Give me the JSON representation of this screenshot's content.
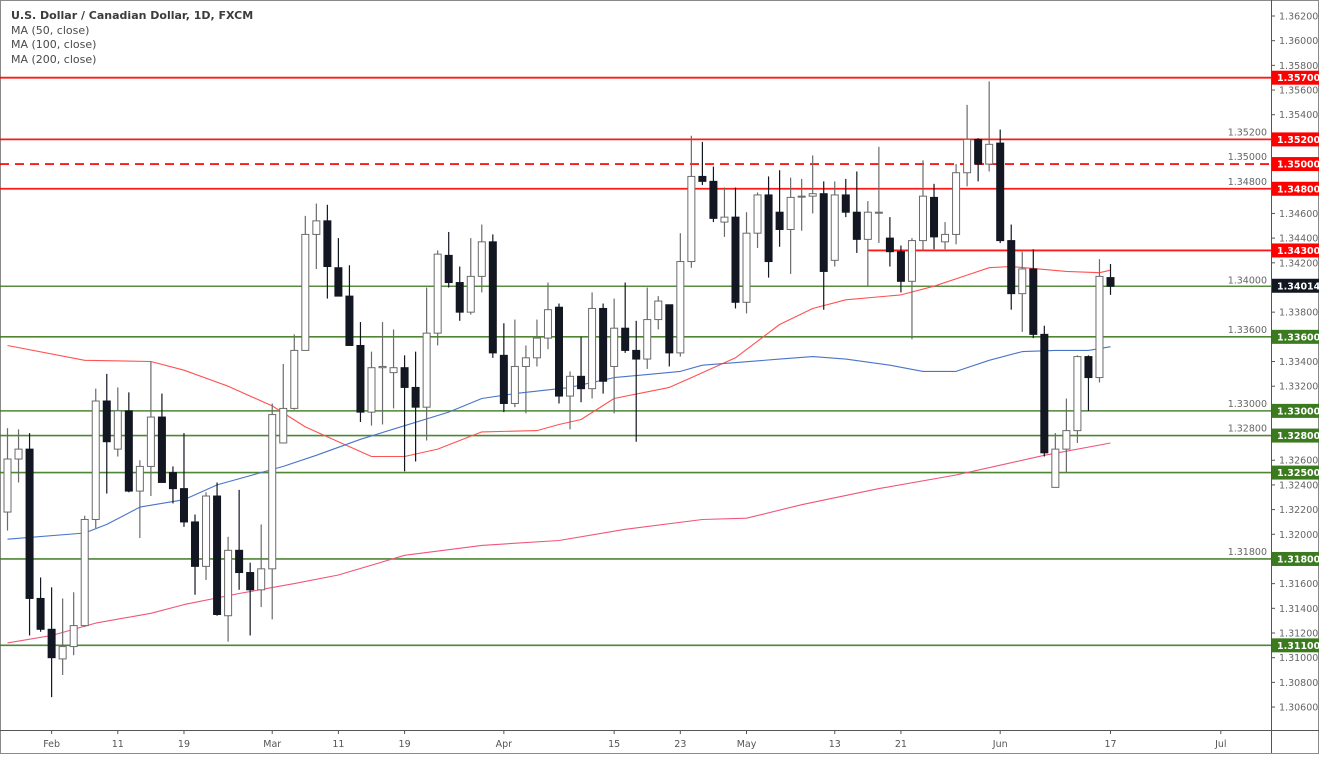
{
  "legend": {
    "title": "U.S. Dollar / Canadian Dollar, 1D, FXCM",
    "ma50": "MA (50, close)",
    "ma100": "MA (100, close)",
    "ma200": "MA (200, close)"
  },
  "chart_data": {
    "type": "candlestick",
    "title": "U.S. Dollar / Canadian Dollar, 1D, FXCM",
    "ylim": [
      1.3048,
      1.3633
    ],
    "y_ticks": [
      "1.36200",
      "1.36000",
      "1.35800",
      "1.35600",
      "1.35400",
      "1.35200",
      "1.35000",
      "1.34800",
      "1.34600",
      "1.34400",
      "1.34200",
      "1.34000",
      "1.33800",
      "1.33600",
      "1.33400",
      "1.33200",
      "1.33000",
      "1.32800",
      "1.32600",
      "1.32400",
      "1.32200",
      "1.32000",
      "1.31800",
      "1.31600",
      "1.31400",
      "1.31200",
      "1.31000",
      "1.30800",
      "1.30600"
    ],
    "x_ticks": [
      {
        "i": 4,
        "label": "Feb"
      },
      {
        "i": 10,
        "label": "11"
      },
      {
        "i": 16,
        "label": "19"
      },
      {
        "i": 24,
        "label": "Mar"
      },
      {
        "i": 30,
        "label": "11"
      },
      {
        "i": 36,
        "label": "19"
      },
      {
        "i": 45,
        "label": "Apr"
      },
      {
        "i": 55,
        "label": "15"
      },
      {
        "i": 61,
        "label": "23"
      },
      {
        "i": 67,
        "label": "May"
      },
      {
        "i": 75,
        "label": "13"
      },
      {
        "i": 81,
        "label": "21"
      },
      {
        "i": 90,
        "label": "Jun"
      },
      {
        "i": 100,
        "label": "17"
      },
      {
        "i": 110,
        "label": "Jul"
      }
    ],
    "candles_ohlc": [
      [
        1.3218,
        1.3286,
        1.3203,
        1.3261
      ],
      [
        1.3261,
        1.3285,
        1.3242,
        1.3269
      ],
      [
        1.3269,
        1.3282,
        1.3118,
        1.3148
      ],
      [
        1.3148,
        1.3165,
        1.3121,
        1.3123
      ],
      [
        1.3123,
        1.3157,
        1.3068,
        1.31
      ],
      [
        1.3099,
        1.3148,
        1.3086,
        1.3109
      ],
      [
        1.3109,
        1.3153,
        1.3102,
        1.3126
      ],
      [
        1.3126,
        1.3215,
        1.3125,
        1.3212
      ],
      [
        1.3212,
        1.3318,
        1.3205,
        1.3308
      ],
      [
        1.3308,
        1.333,
        1.3233,
        1.3275
      ],
      [
        1.3269,
        1.3319,
        1.3263,
        1.33
      ],
      [
        1.33,
        1.3315,
        1.3234,
        1.3235
      ],
      [
        1.3235,
        1.326,
        1.3197,
        1.3255
      ],
      [
        1.3255,
        1.334,
        1.3231,
        1.3295
      ],
      [
        1.3295,
        1.3314,
        1.3242,
        1.3242
      ],
      [
        1.325,
        1.3255,
        1.3225,
        1.3237
      ],
      [
        1.3237,
        1.3282,
        1.3206,
        1.321
      ],
      [
        1.321,
        1.3216,
        1.3151,
        1.3174
      ],
      [
        1.3174,
        1.3234,
        1.3163,
        1.3231
      ],
      [
        1.3231,
        1.3242,
        1.3134,
        1.3135
      ],
      [
        1.3134,
        1.3198,
        1.3113,
        1.3187
      ],
      [
        1.3187,
        1.3236,
        1.3155,
        1.3169
      ],
      [
        1.3169,
        1.3177,
        1.3118,
        1.3155
      ],
      [
        1.3155,
        1.3208,
        1.3141,
        1.3172
      ],
      [
        1.3172,
        1.3306,
        1.3131,
        1.3297
      ],
      [
        1.3274,
        1.3338,
        1.3274,
        1.3302
      ],
      [
        1.3302,
        1.3362,
        1.3301,
        1.3349
      ],
      [
        1.3349,
        1.3458,
        1.3349,
        1.3443
      ],
      [
        1.3443,
        1.3468,
        1.3415,
        1.3454
      ],
      [
        1.3454,
        1.3467,
        1.3391,
        1.3417
      ],
      [
        1.3416,
        1.344,
        1.3393,
        1.3393
      ],
      [
        1.3393,
        1.3418,
        1.3353,
        1.3353
      ],
      [
        1.3353,
        1.3372,
        1.3291,
        1.3299
      ],
      [
        1.3299,
        1.3348,
        1.3288,
        1.3335
      ],
      [
        1.3335,
        1.3372,
        1.3289,
        1.3336
      ],
      [
        1.3331,
        1.3366,
        1.3302,
        1.3335
      ],
      [
        1.3335,
        1.3345,
        1.3251,
        1.3319
      ],
      [
        1.3319,
        1.3348,
        1.3259,
        1.3303
      ],
      [
        1.3303,
        1.34,
        1.3276,
        1.3363
      ],
      [
        1.3363,
        1.343,
        1.3353,
        1.3427
      ],
      [
        1.3426,
        1.3445,
        1.34,
        1.3404
      ],
      [
        1.3404,
        1.3417,
        1.3373,
        1.338
      ],
      [
        1.338,
        1.344,
        1.3378,
        1.3409
      ],
      [
        1.3409,
        1.3451,
        1.3396,
        1.3437
      ],
      [
        1.3437,
        1.3443,
        1.3343,
        1.3347
      ],
      [
        1.3345,
        1.3371,
        1.3299,
        1.3306
      ],
      [
        1.3306,
        1.3374,
        1.3303,
        1.3336
      ],
      [
        1.3336,
        1.3353,
        1.3298,
        1.3343
      ],
      [
        1.3343,
        1.3374,
        1.3336,
        1.3359
      ],
      [
        1.3359,
        1.3404,
        1.335,
        1.3382
      ],
      [
        1.3384,
        1.3387,
        1.3306,
        1.3312
      ],
      [
        1.3312,
        1.3332,
        1.3285,
        1.3328
      ],
      [
        1.3328,
        1.336,
        1.3307,
        1.3318
      ],
      [
        1.3318,
        1.3396,
        1.331,
        1.3383
      ],
      [
        1.3383,
        1.3387,
        1.3314,
        1.3324
      ],
      [
        1.3336,
        1.3391,
        1.3298,
        1.3367
      ],
      [
        1.3367,
        1.3404,
        1.3347,
        1.3349
      ],
      [
        1.3349,
        1.3373,
        1.3275,
        1.3342
      ],
      [
        1.3342,
        1.34,
        1.3334,
        1.3374
      ],
      [
        1.3374,
        1.3393,
        1.3366,
        1.3389
      ],
      [
        1.3386,
        1.3386,
        1.3336,
        1.3347
      ],
      [
        1.3347,
        1.3444,
        1.3344,
        1.3421
      ],
      [
        1.3421,
        1.3523,
        1.3416,
        1.349
      ],
      [
        1.349,
        1.3518,
        1.3483,
        1.3486
      ],
      [
        1.3486,
        1.3498,
        1.3453,
        1.3456
      ],
      [
        1.3453,
        1.3481,
        1.3441,
        1.3457
      ],
      [
        1.3457,
        1.3481,
        1.3383,
        1.3388
      ],
      [
        1.3388,
        1.3461,
        1.3379,
        1.3444
      ],
      [
        1.3444,
        1.3477,
        1.3432,
        1.3475
      ],
      [
        1.3475,
        1.349,
        1.3408,
        1.3421
      ],
      [
        1.3461,
        1.3495,
        1.3433,
        1.3447
      ],
      [
        1.3447,
        1.3489,
        1.3411,
        1.3473
      ],
      [
        1.3474,
        1.3488,
        1.3446,
        1.3474
      ],
      [
        1.3474,
        1.3507,
        1.346,
        1.3476
      ],
      [
        1.3476,
        1.3486,
        1.3382,
        1.3413
      ],
      [
        1.3422,
        1.3486,
        1.3417,
        1.3475
      ],
      [
        1.3475,
        1.3488,
        1.3457,
        1.3461
      ],
      [
        1.3461,
        1.3494,
        1.3428,
        1.3439
      ],
      [
        1.3439,
        1.347,
        1.3401,
        1.3461
      ],
      [
        1.3461,
        1.3514,
        1.3436,
        1.3461
      ],
      [
        1.344,
        1.3457,
        1.3417,
        1.3429
      ],
      [
        1.3429,
        1.3434,
        1.3396,
        1.3405
      ],
      [
        1.3405,
        1.344,
        1.3358,
        1.3438
      ],
      [
        1.3438,
        1.3503,
        1.343,
        1.3474
      ],
      [
        1.3473,
        1.3484,
        1.3431,
        1.3441
      ],
      [
        1.3437,
        1.3453,
        1.3431,
        1.3443
      ],
      [
        1.3443,
        1.35,
        1.3435,
        1.3493
      ],
      [
        1.3493,
        1.3548,
        1.3482,
        1.352
      ],
      [
        1.352,
        1.3521,
        1.3486,
        1.35
      ],
      [
        1.35,
        1.3567,
        1.3494,
        1.3516
      ],
      [
        1.3517,
        1.3528,
        1.3436,
        1.3438
      ],
      [
        1.3438,
        1.3451,
        1.3382,
        1.3395
      ],
      [
        1.3395,
        1.3429,
        1.3364,
        1.3415
      ],
      [
        1.3415,
        1.3431,
        1.3359,
        1.3362
      ],
      [
        1.3362,
        1.3369,
        1.3263,
        1.3266
      ],
      [
        1.3238,
        1.3282,
        1.3238,
        1.3269
      ],
      [
        1.3269,
        1.331,
        1.325,
        1.3284
      ],
      [
        1.3284,
        1.3345,
        1.3274,
        1.3344
      ],
      [
        1.3344,
        1.3345,
        1.33,
        1.3327
      ],
      [
        1.3327,
        1.3423,
        1.3323,
        1.3409
      ],
      [
        1.3408,
        1.3419,
        1.3394,
        1.3401
      ]
    ],
    "series": [
      {
        "name": "MA (50, close)",
        "color": "#ff5252",
        "points": [
          [
            0,
            1.3353
          ],
          [
            7,
            1.3341
          ],
          [
            13,
            1.334
          ],
          [
            16,
            1.3333
          ],
          [
            20,
            1.332
          ],
          [
            24,
            1.3304
          ],
          [
            27,
            1.3287
          ],
          [
            30,
            1.3275
          ],
          [
            33,
            1.3263
          ],
          [
            36,
            1.3263
          ],
          [
            39,
            1.3269
          ],
          [
            43,
            1.3283
          ],
          [
            48,
            1.3284
          ],
          [
            50,
            1.3289
          ],
          [
            52,
            1.3293
          ],
          [
            55,
            1.331
          ],
          [
            60,
            1.3319
          ],
          [
            62,
            1.3327
          ],
          [
            66,
            1.3343
          ],
          [
            70,
            1.337
          ],
          [
            73,
            1.3383
          ],
          [
            76,
            1.339
          ],
          [
            81,
            1.3394
          ],
          [
            84,
            1.3401
          ],
          [
            87,
            1.341
          ],
          [
            89,
            1.3416
          ],
          [
            91,
            1.3417
          ],
          [
            96,
            1.3413
          ],
          [
            99,
            1.3412
          ],
          [
            100,
            1.3414
          ]
        ]
      },
      {
        "name": "MA (100, close)",
        "color": "#4a74c9",
        "points": [
          [
            0,
            1.3196
          ],
          [
            7,
            1.3201
          ],
          [
            9,
            1.3208
          ],
          [
            12,
            1.3222
          ],
          [
            16,
            1.3228
          ],
          [
            19,
            1.324
          ],
          [
            25,
            1.3255
          ],
          [
            28,
            1.3264
          ],
          [
            32,
            1.3277
          ],
          [
            36,
            1.3288
          ],
          [
            40,
            1.3299
          ],
          [
            43,
            1.331
          ],
          [
            46,
            1.3314
          ],
          [
            51,
            1.3319
          ],
          [
            55,
            1.3327
          ],
          [
            61,
            1.3332
          ],
          [
            63,
            1.3337
          ],
          [
            70,
            1.3342
          ],
          [
            73,
            1.3344
          ],
          [
            76,
            1.3342
          ],
          [
            80,
            1.3337
          ],
          [
            83,
            1.3332
          ],
          [
            86,
            1.3332
          ],
          [
            89,
            1.3341
          ],
          [
            92,
            1.3348
          ],
          [
            95,
            1.3349
          ],
          [
            98,
            1.3349
          ],
          [
            100,
            1.3352
          ]
        ]
      },
      {
        "name": "MA (200, close)",
        "color": "#f0567c",
        "points": [
          [
            0,
            1.3112
          ],
          [
            4,
            1.3118
          ],
          [
            8,
            1.3128
          ],
          [
            13,
            1.3136
          ],
          [
            16,
            1.3143
          ],
          [
            21,
            1.3152
          ],
          [
            26,
            1.316
          ],
          [
            30,
            1.3167
          ],
          [
            36,
            1.3183
          ],
          [
            43,
            1.3191
          ],
          [
            50,
            1.3195
          ],
          [
            56,
            1.3204
          ],
          [
            63,
            1.3212
          ],
          [
            67,
            1.3213
          ],
          [
            72,
            1.3224
          ],
          [
            79,
            1.3237
          ],
          [
            86,
            1.3248
          ],
          [
            90,
            1.3256
          ],
          [
            94,
            1.3264
          ],
          [
            100,
            1.3274
          ]
        ]
      }
    ],
    "levels": [
      {
        "value": 1.357,
        "label": "1.35700",
        "color": "#ff0000",
        "style": "solid",
        "from_i": null
      },
      {
        "value": 1.352,
        "label": "1.35200",
        "color": "#ff0000",
        "style": "solid",
        "from_i": null
      },
      {
        "value": 1.35,
        "label": "1.35000",
        "color": "#ff0000",
        "style": "dashed",
        "from_i": null
      },
      {
        "value": 1.348,
        "label": "1.34800",
        "color": "#ff0000",
        "style": "solid",
        "from_i": null
      },
      {
        "value": 1.343,
        "label": "1.34300",
        "color": "#ff0000",
        "style": "solid",
        "from_i": 78
      },
      {
        "value": 1.336,
        "label": "1.33600",
        "color": "#3b7a1f",
        "style": "solid",
        "from_i": null
      },
      {
        "value": 1.33,
        "label": "1.33000",
        "color": "#3b7a1f",
        "style": "solid",
        "from_i": null
      },
      {
        "value": 1.328,
        "label": "1.32800",
        "color": "#3b7a1f",
        "style": "solid",
        "from_i": null
      },
      {
        "value": 1.325,
        "label": "1.32500",
        "color": "#3b7a1f",
        "style": "solid",
        "from_i": null
      },
      {
        "value": 1.318,
        "label": "1.31800",
        "color": "#3b7a1f",
        "style": "solid",
        "from_i": null
      },
      {
        "value": 1.311,
        "label": "1.31100",
        "color": "#3b7a1f",
        "style": "solid",
        "from_i": null
      }
    ],
    "support_line_at_price": {
      "value": 1.3401,
      "color": "#3b7a1f"
    },
    "last_price": {
      "value": 1.34014,
      "label": "1.34014",
      "color": "#131722"
    },
    "colors": {
      "up_body": "#ffffff",
      "up_border": "#6b6b6b",
      "down_body": "#131722",
      "down_border": "#131722"
    }
  }
}
